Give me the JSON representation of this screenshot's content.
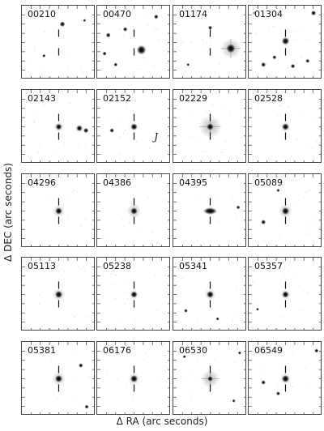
{
  "figure": {
    "xlabel": "Δ RA (arc seconds)",
    "ylabel": "Δ DEC (arc seconds)"
  },
  "panels": [
    {
      "id": "00210",
      "sources": [
        {
          "dx": 0.05,
          "dy": -0.25,
          "flux": 0.5,
          "halo": 0
        },
        {
          "dx": -0.2,
          "dy": 0.18,
          "flux": 0.2,
          "halo": 0
        },
        {
          "dx": 0.35,
          "dy": -0.3,
          "flux": 0.15,
          "halo": 0
        }
      ]
    },
    {
      "id": "00470",
      "sources": [
        {
          "dx": 0.1,
          "dy": 0.1,
          "flux": 1.0,
          "halo": 0.2
        },
        {
          "dx": -0.35,
          "dy": -0.1,
          "flux": 0.4,
          "halo": 0
        },
        {
          "dx": -0.12,
          "dy": -0.18,
          "flux": 0.35,
          "halo": 0
        },
        {
          "dx": -0.4,
          "dy": 0.15,
          "flux": 0.3,
          "halo": 0
        },
        {
          "dx": 0.3,
          "dy": -0.35,
          "flux": 0.35,
          "halo": 0
        },
        {
          "dx": -0.25,
          "dy": 0.3,
          "flux": 0.25,
          "halo": 0
        }
      ]
    },
    {
      "id": "01174",
      "sources": [
        {
          "dx": 0.28,
          "dy": 0.08,
          "flux": 1.0,
          "halo": 0.6
        },
        {
          "dx": 0.0,
          "dy": -0.2,
          "flux": 0.3,
          "halo": 0
        },
        {
          "dx": -0.3,
          "dy": 0.3,
          "flux": 0.15,
          "halo": 0
        }
      ]
    },
    {
      "id": "01304",
      "sources": [
        {
          "dx": 0.0,
          "dy": -0.02,
          "flux": 0.75,
          "halo": 0.1
        },
        {
          "dx": -0.3,
          "dy": 0.3,
          "flux": 0.4,
          "halo": 0
        },
        {
          "dx": 0.38,
          "dy": -0.4,
          "flux": 0.45,
          "halo": 0
        },
        {
          "dx": 0.1,
          "dy": 0.32,
          "flux": 0.35,
          "halo": 0
        },
        {
          "dx": -0.15,
          "dy": 0.2,
          "flux": 0.3,
          "halo": 0
        },
        {
          "dx": 0.3,
          "dy": 0.25,
          "flux": 0.3,
          "halo": 0
        },
        {
          "dx": -0.42,
          "dy": -0.4,
          "flux": 0.25,
          "halo": 0
        }
      ]
    },
    {
      "id": "02143",
      "sources": [
        {
          "dx": 0.0,
          "dy": 0.0,
          "flux": 0.6,
          "halo": 0.15
        },
        {
          "dx": 0.28,
          "dy": 0.02,
          "flux": 0.55,
          "halo": 0.1
        },
        {
          "dx": 0.37,
          "dy": 0.05,
          "flux": 0.45,
          "halo": 0
        }
      ]
    },
    {
      "id": "02152",
      "sources": [
        {
          "dx": 0.0,
          "dy": 0.0,
          "flux": 0.65,
          "halo": 0.1
        },
        {
          "dx": -0.3,
          "dy": 0.05,
          "flux": 0.35,
          "halo": 0
        }
      ],
      "note": "J"
    },
    {
      "id": "02229",
      "sources": [
        {
          "dx": 0.0,
          "dy": 0.0,
          "flux": 0.7,
          "halo": 0.7
        }
      ]
    },
    {
      "id": "02528",
      "sources": [
        {
          "dx": 0.0,
          "dy": 0.0,
          "flux": 0.7,
          "halo": 0.15
        }
      ]
    },
    {
      "id": "04296",
      "sources": [
        {
          "dx": 0.0,
          "dy": 0.0,
          "flux": 0.7,
          "halo": 0.25
        }
      ]
    },
    {
      "id": "04386",
      "sources": [
        {
          "dx": 0.0,
          "dy": 0.0,
          "flux": 0.7,
          "halo": 0.35
        }
      ]
    },
    {
      "id": "04395",
      "sources": [
        {
          "dx": 0.0,
          "dy": 0.0,
          "flux": 0.65,
          "halo": 0.15,
          "elong": 2.2
        },
        {
          "dx": 0.38,
          "dy": -0.05,
          "flux": 0.25,
          "halo": 0
        }
      ]
    },
    {
      "id": "05089",
      "sources": [
        {
          "dx": 0.0,
          "dy": 0.0,
          "flux": 0.75,
          "halo": 0.3
        },
        {
          "dx": -0.3,
          "dy": 0.15,
          "flux": 0.4,
          "halo": 0
        },
        {
          "dx": -0.1,
          "dy": -0.28,
          "flux": 0.2,
          "halo": 0
        }
      ]
    },
    {
      "id": "05113",
      "sources": [
        {
          "dx": 0.0,
          "dy": 0.0,
          "flux": 0.75,
          "halo": 0.25
        }
      ]
    },
    {
      "id": "05238",
      "sources": [
        {
          "dx": 0.0,
          "dy": 0.0,
          "flux": 0.65,
          "halo": 0.12
        }
      ]
    },
    {
      "id": "05341",
      "sources": [
        {
          "dx": 0.0,
          "dy": 0.0,
          "flux": 0.7,
          "halo": 0.2
        },
        {
          "dx": -0.33,
          "dy": 0.22,
          "flux": 0.25,
          "halo": 0
        },
        {
          "dx": 0.1,
          "dy": 0.33,
          "flux": 0.2,
          "halo": 0
        }
      ]
    },
    {
      "id": "05357",
      "sources": [
        {
          "dx": 0.0,
          "dy": 0.0,
          "flux": 0.65,
          "halo": 0.15
        },
        {
          "dx": -0.38,
          "dy": 0.2,
          "flux": 0.15,
          "halo": 0
        }
      ]
    },
    {
      "id": "05381",
      "sources": [
        {
          "dx": 0.0,
          "dy": 0.0,
          "flux": 0.75,
          "halo": 0.3
        },
        {
          "dx": 0.3,
          "dy": -0.18,
          "flux": 0.35,
          "halo": 0
        },
        {
          "dx": 0.38,
          "dy": 0.38,
          "flux": 0.3,
          "halo": 0
        }
      ]
    },
    {
      "id": "06176",
      "sources": [
        {
          "dx": 0.0,
          "dy": 0.0,
          "flux": 0.75,
          "halo": 0.2
        }
      ]
    },
    {
      "id": "06530",
      "sources": [
        {
          "dx": 0.0,
          "dy": 0.0,
          "flux": 0.45,
          "halo": 0.5
        },
        {
          "dx": -0.35,
          "dy": -0.3,
          "flux": 0.2,
          "halo": 0
        },
        {
          "dx": 0.32,
          "dy": 0.3,
          "flux": 0.2,
          "halo": 0
        },
        {
          "dx": 0.4,
          "dy": -0.35,
          "flux": 0.18,
          "halo": 0
        }
      ]
    },
    {
      "id": "06549",
      "sources": [
        {
          "dx": 0.0,
          "dy": 0.0,
          "flux": 0.75,
          "halo": 0.2
        },
        {
          "dx": -0.3,
          "dy": 0.05,
          "flux": 0.35,
          "halo": 0
        },
        {
          "dx": -0.1,
          "dy": 0.2,
          "flux": 0.3,
          "halo": 0
        },
        {
          "dx": 0.42,
          "dy": -0.38,
          "flux": 0.3,
          "halo": 0
        }
      ]
    }
  ]
}
